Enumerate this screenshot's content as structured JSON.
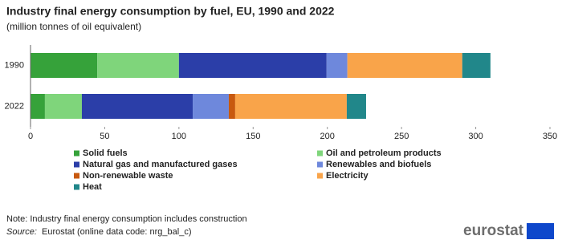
{
  "chart_data": {
    "type": "bar",
    "orientation": "horizontal",
    "stacked": true,
    "title": "Industry final energy consumption by fuel, EU, 1990 and 2022",
    "subtitle": "(million tonnes of oil equivalent)",
    "categories": [
      "1990",
      "2022"
    ],
    "series": [
      {
        "name": "Solid fuels",
        "color": "#36a23a",
        "values": [
          45,
          9.7
        ]
      },
      {
        "name": "Oil and petroleum products",
        "color": "#7fd57b",
        "values": [
          55,
          24.9
        ]
      },
      {
        "name": "Natural gas and manufactured gases",
        "color": "#2b3ea8",
        "values": [
          99.5,
          74.7
        ]
      },
      {
        "name": "Renewables and biofuels",
        "color": "#6e88dc",
        "values": [
          14,
          24.3
        ]
      },
      {
        "name": "Non-renewable waste",
        "color": "#c8590f",
        "values": [
          0,
          4.3
        ]
      },
      {
        "name": "Electricity",
        "color": "#f9a44a",
        "values": [
          77.4,
          75.2
        ]
      },
      {
        "name": "Heat",
        "color": "#21878a",
        "values": [
          19,
          13
        ]
      }
    ],
    "xlim": [
      0,
      350
    ],
    "xticks": [
      0,
      50,
      100,
      150,
      200,
      250,
      300,
      350
    ],
    "grid": false,
    "legend": "bottom",
    "note": "Note: Industry final energy consumption includes construction",
    "source_label": "Source:",
    "source": "Eurostat (online data code: nrg_bal_c)",
    "logo": "eurostat"
  }
}
